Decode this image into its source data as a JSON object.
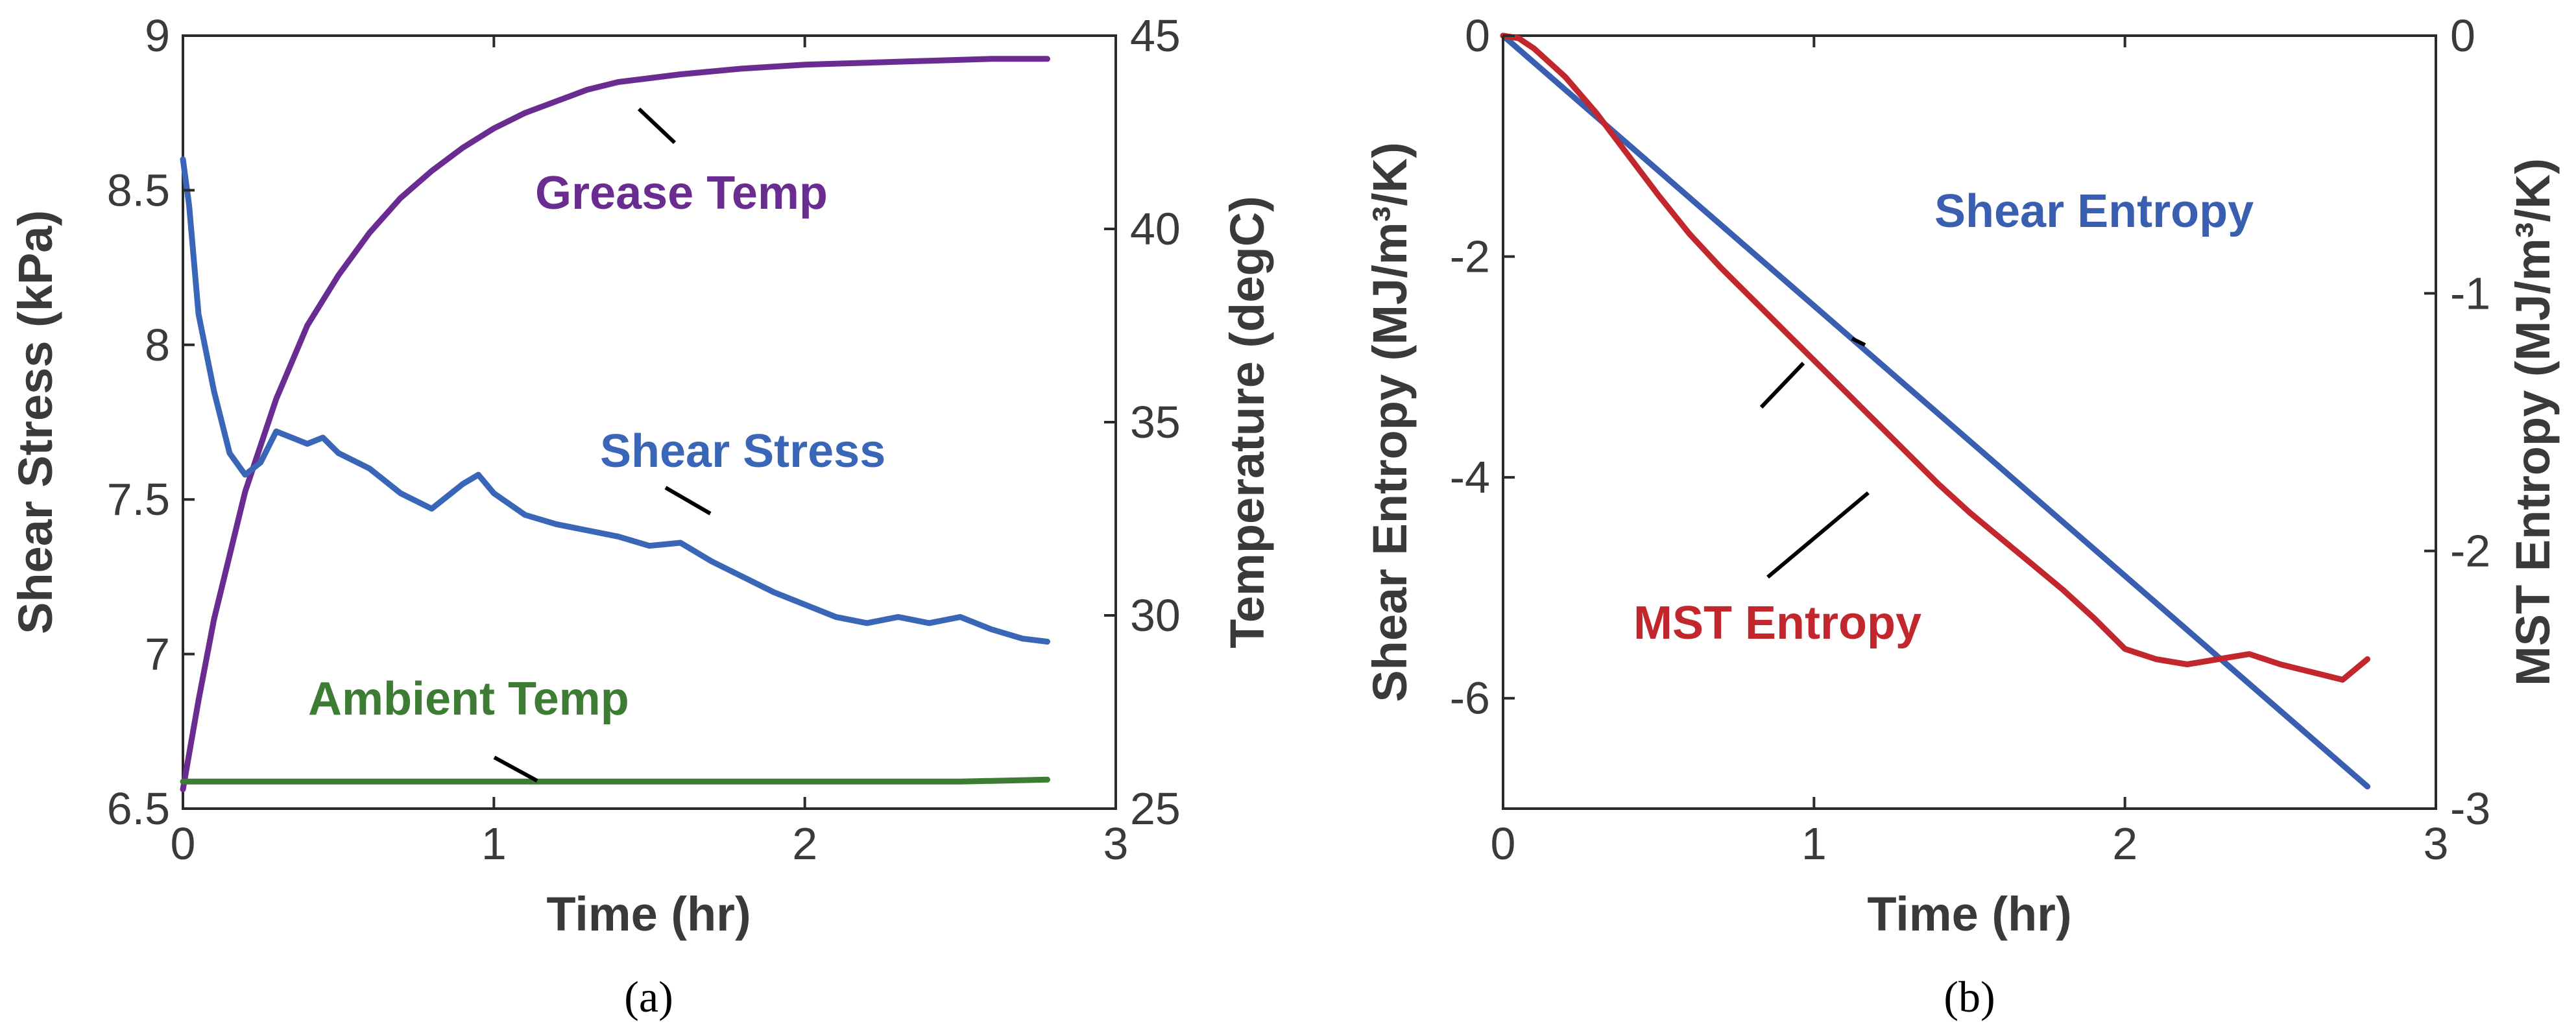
{
  "chart_data": [
    {
      "type": "line",
      "panel_label": "(a)",
      "xlabel": "Time (hr)",
      "ylabel": "Shear Stress (kPa)",
      "y2label": "Temperature (degC)",
      "xlim": [
        0,
        3
      ],
      "ylim": [
        6.5,
        9
      ],
      "y2lim": [
        25,
        45
      ],
      "xticks": [
        "0",
        "1",
        "2",
        "3"
      ],
      "yticks": [
        "6.5",
        "7",
        "7.5",
        "8",
        "8.5",
        "9"
      ],
      "y2ticks": [
        "25",
        "30",
        "35",
        "40",
        "45"
      ],
      "series": [
        {
          "name": "Grease Temp",
          "axis": "right",
          "color": "#6a2c91",
          "x": [
            0,
            0.05,
            0.1,
            0.2,
            0.3,
            0.4,
            0.5,
            0.6,
            0.7,
            0.8,
            0.9,
            1.0,
            1.1,
            1.2,
            1.3,
            1.4,
            1.5,
            1.6,
            1.8,
            2.0,
            2.2,
            2.4,
            2.6,
            2.78
          ],
          "y": [
            25.5,
            27.8,
            29.9,
            33.2,
            35.6,
            37.5,
            38.8,
            39.9,
            40.8,
            41.5,
            42.1,
            42.6,
            43.0,
            43.3,
            43.6,
            43.8,
            43.9,
            44.0,
            44.15,
            44.25,
            44.3,
            44.35,
            44.4,
            44.4
          ]
        },
        {
          "name": "Shear Stress",
          "axis": "left",
          "color": "#3a66b8",
          "x": [
            0,
            0.02,
            0.05,
            0.1,
            0.15,
            0.2,
            0.25,
            0.3,
            0.35,
            0.4,
            0.45,
            0.5,
            0.6,
            0.7,
            0.8,
            0.9,
            0.95,
            1.0,
            1.1,
            1.2,
            1.3,
            1.4,
            1.5,
            1.6,
            1.7,
            1.8,
            1.9,
            2.0,
            2.1,
            2.2,
            2.3,
            2.4,
            2.5,
            2.6,
            2.7,
            2.78
          ],
          "y": [
            8.6,
            8.45,
            8.1,
            7.85,
            7.65,
            7.58,
            7.62,
            7.72,
            7.7,
            7.68,
            7.7,
            7.65,
            7.6,
            7.52,
            7.47,
            7.55,
            7.58,
            7.52,
            7.45,
            7.42,
            7.4,
            7.38,
            7.35,
            7.36,
            7.3,
            7.25,
            7.2,
            7.16,
            7.12,
            7.1,
            7.12,
            7.1,
            7.12,
            7.08,
            7.05,
            7.04
          ]
        },
        {
          "name": "Ambient Temp",
          "axis": "right",
          "color": "#3d7d33",
          "x": [
            0,
            0.5,
            1.0,
            1.5,
            2.0,
            2.5,
            2.78
          ],
          "y": [
            25.7,
            25.7,
            25.7,
            25.7,
            25.7,
            25.7,
            25.75
          ]
        }
      ],
      "annotations": [
        "Grease Temp",
        "Shear Stress",
        "Ambient Temp"
      ]
    },
    {
      "type": "line",
      "panel_label": "(b)",
      "xlabel": "Time (hr)",
      "ylabel": "Shear Entropy (MJ/m³/K)",
      "y2label": "MST Entropy (MJ/m³/K)",
      "xlim": [
        0,
        3
      ],
      "ylim": [
        -7,
        0
      ],
      "y2lim": [
        -3,
        0
      ],
      "xticks": [
        "0",
        "1",
        "2",
        "3"
      ],
      "yticks": [
        "0",
        "-2",
        "-4",
        "-6"
      ],
      "y2ticks": [
        "0",
        "-1",
        "-2",
        "-3"
      ],
      "series": [
        {
          "name": "Shear Entropy",
          "axis": "left",
          "color": "#3a5fb0",
          "x": [
            0,
            2.78
          ],
          "y": [
            0,
            -6.8
          ]
        },
        {
          "name": "MST Entropy",
          "axis": "right",
          "color": "#c1272d",
          "x": [
            0,
            0.05,
            0.1,
            0.2,
            0.3,
            0.4,
            0.5,
            0.6,
            0.7,
            0.8,
            0.9,
            1.0,
            1.1,
            1.2,
            1.3,
            1.4,
            1.5,
            1.6,
            1.7,
            1.8,
            1.9,
            2.0,
            2.1,
            2.2,
            2.3,
            2.4,
            2.5,
            2.6,
            2.7,
            2.78
          ],
          "y": [
            0,
            -0.01,
            -0.05,
            -0.16,
            -0.3,
            -0.46,
            -0.62,
            -0.77,
            -0.9,
            -1.02,
            -1.14,
            -1.26,
            -1.38,
            -1.5,
            -1.62,
            -1.74,
            -1.85,
            -1.95,
            -2.05,
            -2.15,
            -2.26,
            -2.38,
            -2.42,
            -2.44,
            -2.42,
            -2.4,
            -2.44,
            -2.47,
            -2.5,
            -2.42
          ]
        }
      ],
      "annotations": [
        "Shear Entropy",
        "MST Entropy"
      ]
    }
  ]
}
